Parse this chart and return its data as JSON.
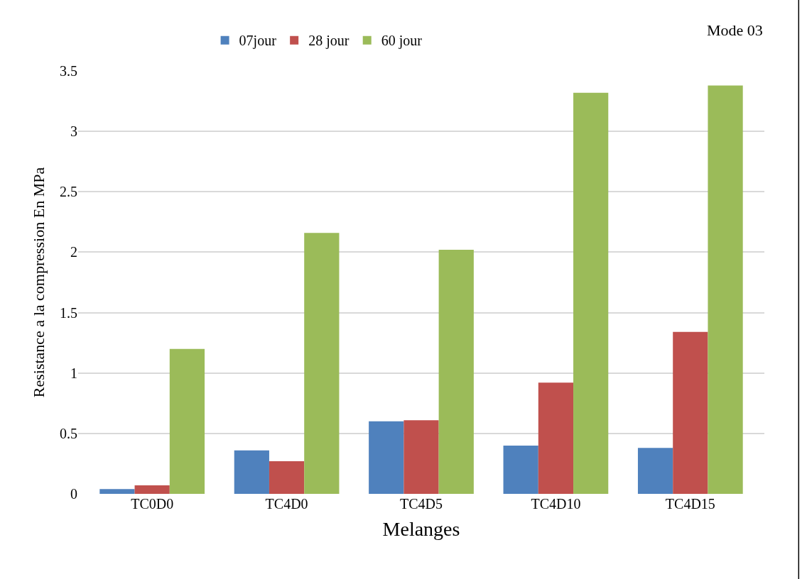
{
  "chart_data": {
    "type": "bar",
    "xlabel": "Melanges",
    "ylabel": "Resistance a la compression En MPa",
    "annotations": [
      "Mode 03"
    ],
    "categories": [
      "TC0D0",
      "TC4D0",
      "TC4D5",
      "TC4D10",
      "TC4D15"
    ],
    "series": [
      {
        "name": "07jour",
        "color": "#4f81bd",
        "values": [
          0.04,
          0.36,
          0.6,
          0.4,
          0.38
        ]
      },
      {
        "name": "28 jour",
        "color": "#c0504d",
        "values": [
          0.07,
          0.27,
          0.61,
          0.92,
          1.34
        ]
      },
      {
        "name": "60 jour",
        "color": "#9bbb59",
        "values": [
          1.2,
          2.16,
          2.02,
          3.32,
          3.38
        ]
      }
    ],
    "ylim": [
      0,
      3.5
    ],
    "yticks": [
      0,
      0.5,
      1,
      1.5,
      2,
      2.5,
      3,
      3.5
    ],
    "grid": "y",
    "legend": "top"
  }
}
